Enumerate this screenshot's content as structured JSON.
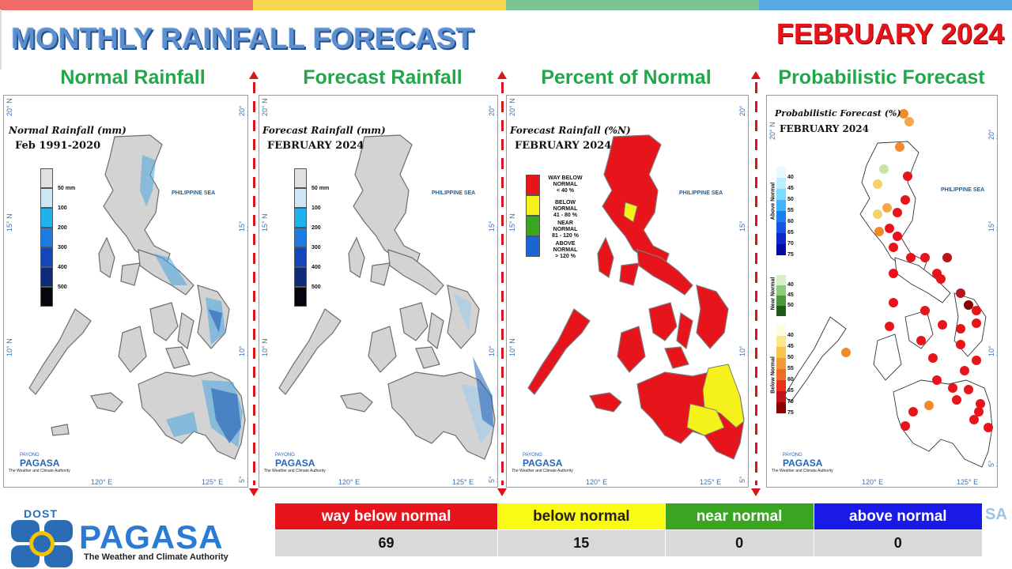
{
  "header": {
    "title": "MONTHLY RAINFALL FORECAST",
    "month": "FEBRUARY 2024",
    "stripe_colors": [
      "#f06a6a",
      "#f5d850",
      "#7cc494",
      "#5aa8e0"
    ]
  },
  "panels": [
    {
      "title": "Normal Rainfall",
      "inner_title": "Normal Rainfall (mm)",
      "inner_sub": "Feb 1991-2020",
      "legend": [
        "50 mm",
        "100",
        "200",
        "300",
        "400",
        "500"
      ]
    },
    {
      "title": "Forecast Rainfall",
      "inner_title": "Forecast Rainfall (mm)",
      "inner_sub": "FEBRUARY 2024",
      "legend": [
        "50 mm",
        "100",
        "200",
        "300",
        "400",
        "500"
      ]
    },
    {
      "title": "Percent of Normal",
      "inner_title": "Forecast Rainfall (%N)",
      "inner_sub": "FEBRUARY 2024",
      "legend": [
        {
          "label": "WAY BELOW NORMAL",
          "range": "< 40 %",
          "color": "#e8141b"
        },
        {
          "label": "BELOW NORMAL",
          "range": "41 - 80 %",
          "color": "#f4f21a"
        },
        {
          "label": "NEAR NORMAL",
          "range": "81 - 120 %",
          "color": "#3aa521"
        },
        {
          "label": "ABOVE NORMAL",
          "range": "> 120 %",
          "color": "#1a64d6"
        }
      ]
    },
    {
      "title": "Probabilistic Forecast",
      "inner_title": "Probabilistic Forecast (%)",
      "inner_sub": "FEBRUARY 2024",
      "legend_above": {
        "label": "Above Normal",
        "values": [
          "40",
          "45",
          "50",
          "55",
          "60",
          "65",
          "70",
          "75"
        ]
      },
      "legend_near": {
        "label": "Near Normal",
        "values": [
          "40",
          "45",
          "50"
        ]
      },
      "legend_below": {
        "label": "Below Normal",
        "values": [
          "40",
          "45",
          "50",
          "55",
          "60",
          "65",
          "70",
          "75"
        ]
      }
    }
  ],
  "map_labels": {
    "sea": "PHILIPPINE SEA",
    "lat_20": "20° N",
    "lat_15": "15° N",
    "lat_10": "10° N",
    "lat_5": "5° N",
    "lon_120": "120° E",
    "lon_125": "125° E",
    "mini_logo_top": "PAYONG",
    "mini_logo": "PAGASA",
    "mini_logo_dost": "DOST",
    "mini_logo_tag": "The Weather and Climate Authority"
  },
  "stats": {
    "categories": [
      {
        "label": "way below normal",
        "value": "69",
        "color": "#e8141b",
        "text": "#ffffff"
      },
      {
        "label": "below normal",
        "value": "15",
        "color": "#fafa12",
        "text": "#222222"
      },
      {
        "label": "near normal",
        "value": "0",
        "color": "#3aa521",
        "text": "#ffffff"
      },
      {
        "label": "above normal",
        "value": "0",
        "color": "#1a1ae8",
        "text": "#ffffff"
      }
    ]
  },
  "footer": {
    "dost": "DOST",
    "agency": "PAGASA",
    "tagline": "The Weather and Climate Authority"
  }
}
